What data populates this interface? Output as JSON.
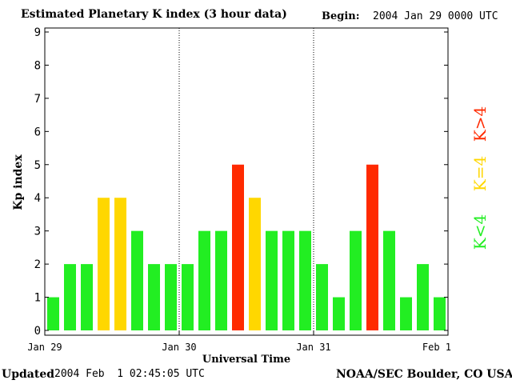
{
  "header": {
    "title": "Estimated Planetary K index (3 hour data)",
    "begin_label": "Begin:",
    "begin_value": "2004 Jan 29 0000 UTC"
  },
  "footer": {
    "updated_label": "Updated",
    "updated_value": "2004 Feb  1 02:45:05 UTC",
    "source": "NOAA/SEC Boulder, CO USA"
  },
  "legend": {
    "items": [
      {
        "label": "K<4",
        "color": "#22ee22"
      },
      {
        "label": "K=4",
        "color": "#ffd700"
      },
      {
        "label": "K>4",
        "color": "#ff2a00"
      }
    ]
  },
  "colors": {
    "low": "#22ee22",
    "equal": "#ffd700",
    "high": "#ff2a00"
  },
  "chart_data": {
    "type": "bar",
    "ylabel": "Kp index",
    "xlabel": "Universal Time",
    "ylim": [
      0,
      9
    ],
    "yticks": [
      0,
      1,
      2,
      3,
      4,
      5,
      6,
      7,
      8,
      9
    ],
    "xtick_labels": [
      "Jan 29",
      "Jan 30",
      "Jan 31",
      "Feb 1"
    ],
    "day_dividers": [
      "Jan 30",
      "Jan 31"
    ],
    "bars_per_day": 8,
    "values": [
      1,
      2,
      2,
      4,
      4,
      3,
      2,
      2,
      2,
      3,
      3,
      5,
      4,
      3,
      3,
      3,
      2,
      1,
      3,
      5,
      3,
      1,
      2,
      1
    ]
  }
}
